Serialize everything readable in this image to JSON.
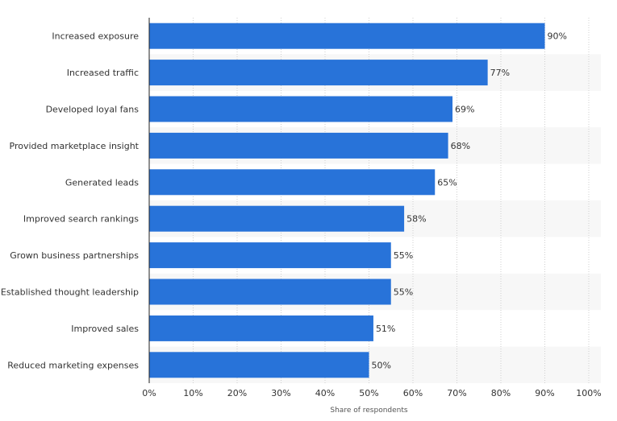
{
  "chart_data": {
    "type": "bar",
    "orientation": "horizontal",
    "categories": [
      "Increased exposure",
      "Increased traffic",
      "Developed loyal fans",
      "Provided marketplace insight",
      "Generated leads",
      "Improved search rankings",
      "Grown business partnerships",
      "Established thought leadership",
      "Improved sales",
      "Reduced marketing expenses"
    ],
    "values": [
      90,
      77,
      69,
      68,
      65,
      58,
      55,
      55,
      51,
      50
    ],
    "value_labels": [
      "90%",
      "77%",
      "69%",
      "68%",
      "65%",
      "58%",
      "55%",
      "55%",
      "51%",
      "50%"
    ],
    "xlabel": "Share of respondents",
    "ylabel": "",
    "xlim": [
      0,
      100
    ],
    "x_ticks": [
      0,
      10,
      20,
      30,
      40,
      50,
      60,
      70,
      80,
      90,
      100
    ],
    "x_tick_labels": [
      "0%",
      "10%",
      "20%",
      "30%",
      "40%",
      "50%",
      "60%",
      "70%",
      "80%",
      "90%",
      "100%"
    ],
    "grid": true,
    "legend": "none",
    "colors": {
      "bar": "#2873d9",
      "band": "#f7f7f7",
      "grid": "#cfcfcf",
      "axis": "#222222",
      "text": "#333333",
      "value_text": "#333333",
      "xlabel_text": "#555555"
    }
  }
}
